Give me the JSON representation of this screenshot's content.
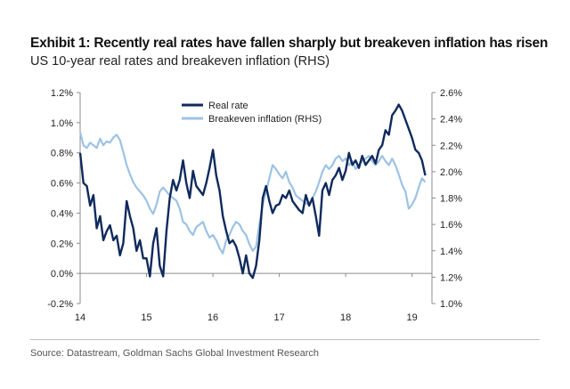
{
  "header": {
    "title": "Exhibit 1: Recently real rates have fallen sharply but breakeven inflation has risen",
    "subtitle": "US 10-year real rates and breakeven inflation (RHS)"
  },
  "footer": {
    "source": "Source: Datastream, Goldman Sachs Global Investment Research"
  },
  "colors": {
    "real_rate": "#0f2a5c",
    "breakeven": "#9cc3e4",
    "axis": "#8c8c8c"
  },
  "chart_data": {
    "type": "line",
    "title": "US 10-year real rates and breakeven inflation (RHS)",
    "x_range": [
      14,
      19.3
    ],
    "x_ticks": [
      {
        "value": 14,
        "label": "14"
      },
      {
        "value": 15,
        "label": "15"
      },
      {
        "value": 16,
        "label": "16"
      },
      {
        "value": 17,
        "label": "17"
      },
      {
        "value": 18,
        "label": "18"
      },
      {
        "value": 19,
        "label": "19"
      }
    ],
    "y_left": {
      "range": [
        -0.2,
        1.2
      ],
      "ticks": [
        {
          "value": 1.2,
          "label": "1.2%"
        },
        {
          "value": 1.0,
          "label": "1.0%"
        },
        {
          "value": 0.8,
          "label": "0.8%"
        },
        {
          "value": 0.6,
          "label": "0.6%"
        },
        {
          "value": 0.4,
          "label": "0.4%"
        },
        {
          "value": 0.2,
          "label": "0.2%"
        },
        {
          "value": 0.0,
          "label": "0.0%"
        },
        {
          "value": -0.2,
          "label": "-0.2%"
        }
      ]
    },
    "y_right": {
      "range": [
        1.0,
        2.6
      ],
      "ticks": [
        {
          "value": 2.6,
          "label": "2.6%"
        },
        {
          "value": 2.4,
          "label": "2.4%"
        },
        {
          "value": 2.2,
          "label": "2.2%"
        },
        {
          "value": 2.0,
          "label": "2.0%"
        },
        {
          "value": 1.8,
          "label": "1.8%"
        },
        {
          "value": 1.6,
          "label": "1.6%"
        },
        {
          "value": 1.4,
          "label": "1.4%"
        },
        {
          "value": 1.2,
          "label": "1.2%"
        },
        {
          "value": 1.0,
          "label": "1.0%"
        }
      ]
    },
    "series": [
      {
        "name": "Real rate",
        "axis": "left",
        "x": [
          14.0,
          14.05,
          14.1,
          14.15,
          14.2,
          14.25,
          14.3,
          14.35,
          14.4,
          14.45,
          14.5,
          14.55,
          14.6,
          14.65,
          14.7,
          14.75,
          14.8,
          14.85,
          14.9,
          14.95,
          15.0,
          15.05,
          15.1,
          15.15,
          15.2,
          15.25,
          15.3,
          15.35,
          15.4,
          15.45,
          15.5,
          15.55,
          15.6,
          15.65,
          15.7,
          15.75,
          15.8,
          15.85,
          15.9,
          15.95,
          16.0,
          16.05,
          16.1,
          16.15,
          16.2,
          16.25,
          16.3,
          16.35,
          16.4,
          16.45,
          16.5,
          16.55,
          16.6,
          16.65,
          16.7,
          16.75,
          16.8,
          16.85,
          16.9,
          16.95,
          17.0,
          17.05,
          17.1,
          17.15,
          17.2,
          17.25,
          17.3,
          17.35,
          17.4,
          17.45,
          17.5,
          17.55,
          17.6,
          17.65,
          17.7,
          17.75,
          17.8,
          17.85,
          17.9,
          17.95,
          18.0,
          18.05,
          18.1,
          18.15,
          18.2,
          18.25,
          18.3,
          18.35,
          18.4,
          18.45,
          18.5,
          18.55,
          18.6,
          18.65,
          18.7,
          18.75,
          18.8,
          18.85,
          18.9,
          18.95,
          19.0,
          19.05,
          19.1,
          19.15,
          19.2
        ],
        "values": [
          0.8,
          0.6,
          0.58,
          0.45,
          0.52,
          0.3,
          0.38,
          0.22,
          0.28,
          0.32,
          0.22,
          0.25,
          0.12,
          0.2,
          0.48,
          0.38,
          0.3,
          0.15,
          0.22,
          0.1,
          0.1,
          -0.02,
          0.2,
          0.3,
          0.05,
          -0.02,
          0.28,
          0.5,
          0.62,
          0.55,
          0.62,
          0.75,
          0.6,
          0.5,
          0.68,
          0.58,
          0.55,
          0.52,
          0.6,
          0.7,
          0.82,
          0.65,
          0.55,
          0.38,
          0.28,
          0.2,
          0.22,
          0.18,
          0.1,
          0.0,
          0.12,
          0.0,
          -0.03,
          0.05,
          0.22,
          0.5,
          0.58,
          0.48,
          0.4,
          0.45,
          0.46,
          0.52,
          0.5,
          0.55,
          0.48,
          0.45,
          0.42,
          0.4,
          0.52,
          0.45,
          0.5,
          0.38,
          0.25,
          0.55,
          0.6,
          0.52,
          0.62,
          0.65,
          0.7,
          0.62,
          0.68,
          0.8,
          0.72,
          0.75,
          0.7,
          0.78,
          0.72,
          0.75,
          0.78,
          0.73,
          0.82,
          0.85,
          0.95,
          0.92,
          1.05,
          1.08,
          1.12,
          1.08,
          1.02,
          0.96,
          0.9,
          0.82,
          0.8,
          0.75,
          0.65
        ]
      },
      {
        "name": "Breakeven inflation (RHS)",
        "axis": "right",
        "x": [
          14.0,
          14.05,
          14.1,
          14.15,
          14.2,
          14.25,
          14.3,
          14.35,
          14.4,
          14.45,
          14.5,
          14.55,
          14.6,
          14.65,
          14.7,
          14.75,
          14.8,
          14.85,
          14.9,
          14.95,
          15.0,
          15.05,
          15.1,
          15.15,
          15.2,
          15.25,
          15.3,
          15.35,
          15.4,
          15.45,
          15.5,
          15.55,
          15.6,
          15.65,
          15.7,
          15.75,
          15.8,
          15.85,
          15.9,
          15.95,
          16.0,
          16.05,
          16.1,
          16.15,
          16.2,
          16.25,
          16.3,
          16.35,
          16.4,
          16.45,
          16.5,
          16.55,
          16.6,
          16.65,
          16.7,
          16.75,
          16.8,
          16.85,
          16.9,
          16.95,
          17.0,
          17.05,
          17.1,
          17.15,
          17.2,
          17.25,
          17.3,
          17.35,
          17.4,
          17.45,
          17.5,
          17.55,
          17.6,
          17.65,
          17.7,
          17.75,
          17.8,
          17.85,
          17.9,
          17.95,
          18.0,
          18.05,
          18.1,
          18.15,
          18.2,
          18.25,
          18.3,
          18.35,
          18.4,
          18.45,
          18.5,
          18.55,
          18.6,
          18.65,
          18.7,
          18.75,
          18.8,
          18.85,
          18.9,
          18.95,
          19.0,
          19.05,
          19.1,
          19.15,
          19.2
        ],
        "values": [
          2.3,
          2.2,
          2.18,
          2.22,
          2.2,
          2.18,
          2.25,
          2.2,
          2.23,
          2.22,
          2.26,
          2.28,
          2.24,
          2.15,
          2.05,
          1.98,
          1.92,
          1.88,
          1.85,
          1.82,
          1.78,
          1.72,
          1.68,
          1.75,
          1.85,
          1.88,
          1.85,
          1.82,
          1.8,
          1.78,
          1.72,
          1.62,
          1.6,
          1.55,
          1.52,
          1.58,
          1.6,
          1.62,
          1.55,
          1.5,
          1.52,
          1.48,
          1.42,
          1.38,
          1.48,
          1.52,
          1.58,
          1.62,
          1.6,
          1.55,
          1.52,
          1.45,
          1.4,
          1.43,
          1.6,
          1.75,
          1.85,
          1.95,
          2.05,
          2.02,
          1.98,
          1.95,
          2.0,
          1.92,
          1.88,
          1.82,
          1.8,
          1.78,
          1.76,
          1.75,
          1.8,
          1.85,
          1.92,
          2.0,
          2.05,
          2.02,
          2.05,
          2.1,
          2.12,
          2.08,
          2.1,
          2.05,
          2.08,
          2.02,
          2.05,
          2.08,
          2.1,
          2.12,
          2.08,
          2.05,
          2.08,
          2.12,
          2.08,
          2.05,
          2.1,
          2.05,
          1.98,
          1.9,
          1.85,
          1.72,
          1.75,
          1.8,
          1.88,
          1.95,
          1.92
        ]
      }
    ],
    "legend": {
      "position": "top-center",
      "entries": [
        "Real rate",
        "Breakeven inflation (RHS)"
      ]
    },
    "grid": false
  }
}
